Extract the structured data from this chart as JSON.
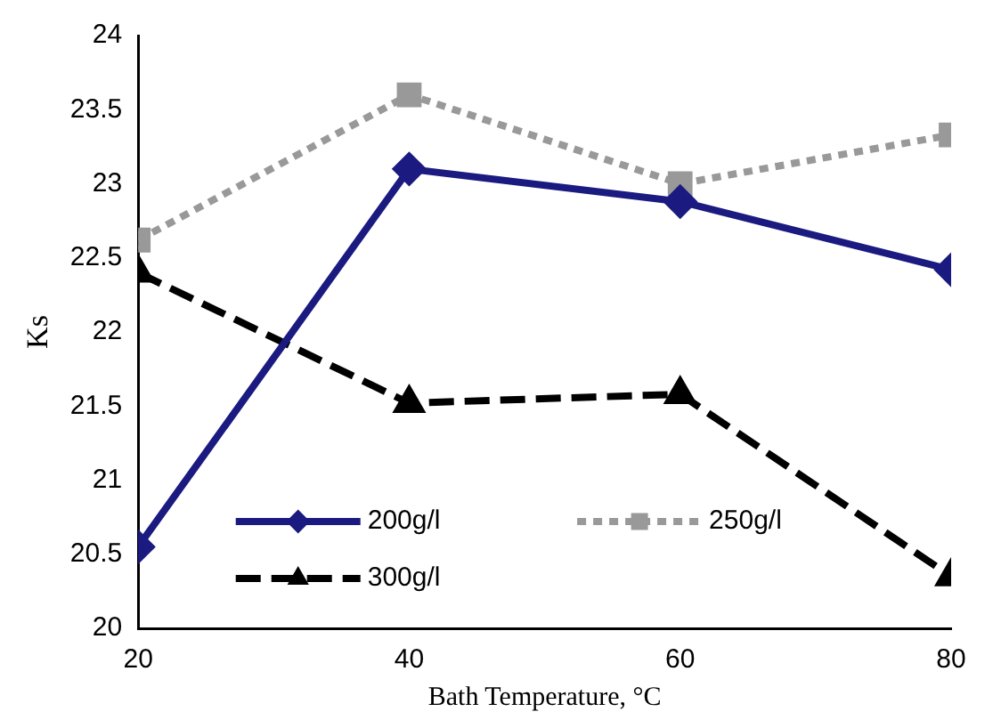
{
  "chart_data": {
    "type": "line",
    "xlabel": "Bath Temperature, °C",
    "ylabel": "Ks",
    "x": [
      20,
      40,
      60,
      80
    ],
    "xlim": [
      20,
      80
    ],
    "xticks": [
      20,
      40,
      60,
      80
    ],
    "ylim": [
      20,
      24
    ],
    "yticks": [
      20,
      20.5,
      21,
      21.5,
      22,
      22.5,
      23,
      23.5,
      24
    ],
    "grid": false,
    "legend": "bottom",
    "series": [
      {
        "name": "200g/l",
        "color": "#1a1a80",
        "values": [
          20.55,
          23.1,
          22.88,
          22.42
        ],
        "marker": "diamond",
        "line_style": "solid"
      },
      {
        "name": "250g/l",
        "color": "#999999",
        "values": [
          22.62,
          23.6,
          23.0,
          23.33
        ],
        "marker": "square",
        "line_style": "dotted"
      },
      {
        "name": "300g/l",
        "color": "#000000",
        "values": [
          22.4,
          21.52,
          21.58,
          20.35
        ],
        "marker": "triangle",
        "line_style": "dashed"
      }
    ]
  }
}
